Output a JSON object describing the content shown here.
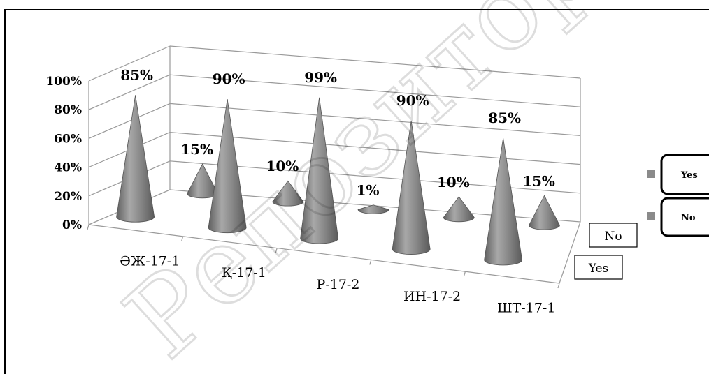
{
  "chart_data": {
    "type": "bar",
    "subtype": "3d-cone",
    "categories": [
      "ӘЖ-17-1",
      "Қ-17-1",
      "Р-17-2",
      "ИН-17-2",
      "ШТ-17-1"
    ],
    "series": [
      {
        "name": "Yes",
        "values": [
          85,
          90,
          99,
          90,
          85
        ],
        "labels": [
          "85%",
          "90%",
          "99%",
          "90%",
          "85%"
        ],
        "color": "#8a8a8a"
      },
      {
        "name": "No",
        "values": [
          15,
          10,
          1,
          10,
          15
        ],
        "labels": [
          "15%",
          "10%",
          "1%",
          "10%",
          "15%"
        ],
        "color": "#8a8a8a"
      }
    ],
    "y_ticks": [
      "0%",
      "20%",
      "40%",
      "60%",
      "80%",
      "100%"
    ],
    "ylim": [
      0,
      100
    ],
    "depth_axis_labels": [
      "No",
      "Yes"
    ],
    "legend": {
      "position": "right",
      "entries": [
        "Yes",
        "No"
      ]
    },
    "grid": true,
    "title": "",
    "xlabel": "",
    "ylabel": ""
  },
  "watermark": "Репозиторий Кар"
}
